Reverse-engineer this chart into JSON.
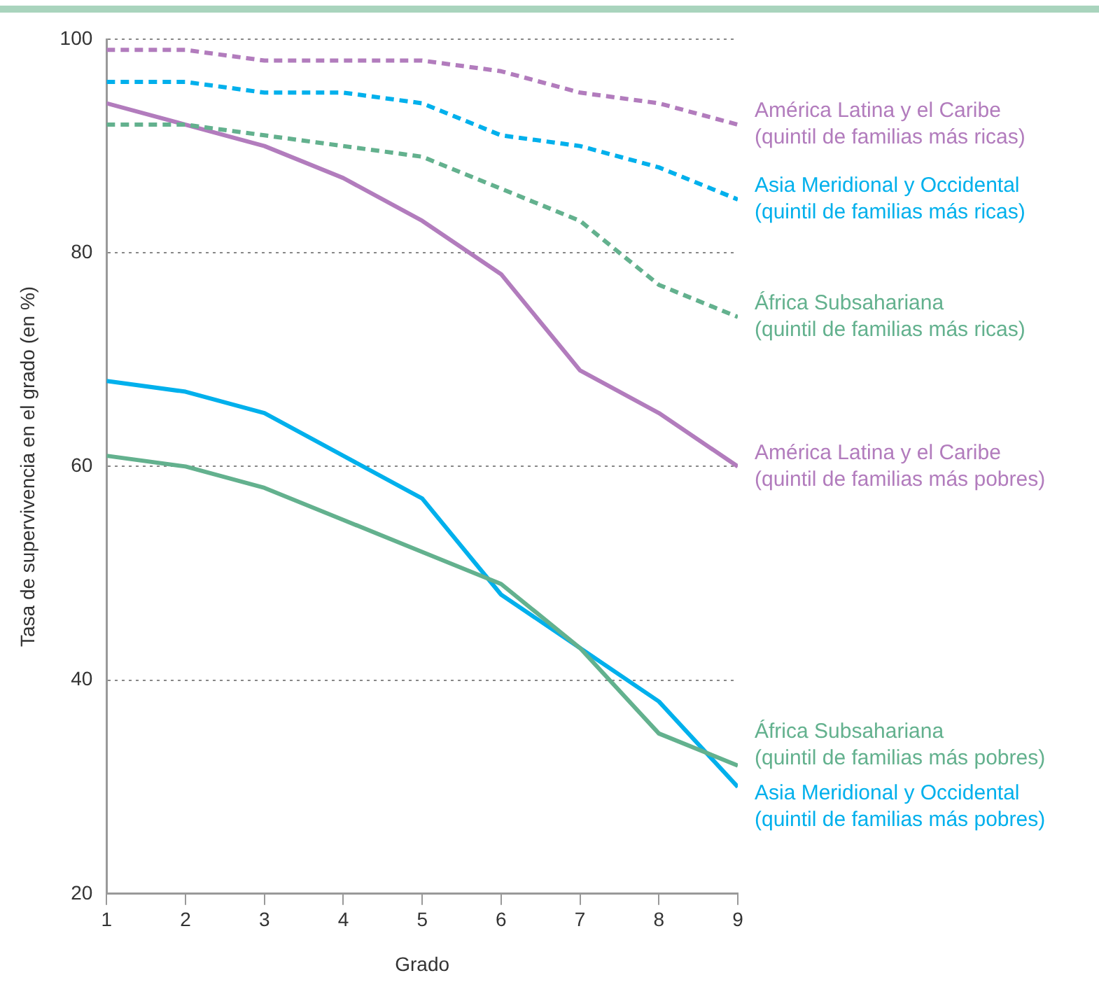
{
  "chart_data": {
    "type": "line",
    "xlabel": "Grado",
    "ylabel": "Tasa de supervivencia en el grado (en %)",
    "x": [
      1,
      2,
      3,
      4,
      5,
      6,
      7,
      8,
      9
    ],
    "xlim": [
      1,
      9
    ],
    "xticks": [
      1,
      2,
      3,
      4,
      5,
      6,
      7,
      8,
      9
    ],
    "ylim": [
      20,
      100
    ],
    "yticks": [
      20,
      40,
      60,
      80,
      100
    ],
    "grid": "y",
    "legend": false,
    "marker": "none",
    "series": [
      {
        "name": "América Latina y el Caribe\n(quintil de familias más ricas)",
        "color": "#b27cbd",
        "line_style": "dashed",
        "values": [
          99,
          99,
          98,
          98,
          98,
          97,
          95,
          94,
          92
        ]
      },
      {
        "name": "Asia Meridional y Occidental\n(quintil de familias más ricas)",
        "color": "#00b0ec",
        "line_style": "dashed",
        "values": [
          96,
          96,
          95,
          95,
          94,
          91,
          90,
          88,
          85
        ]
      },
      {
        "name": "África Subsahariana\n(quintil de familias más ricas)",
        "color": "#63b18e",
        "line_style": "dashed",
        "values": [
          92,
          92,
          91,
          90,
          89,
          86,
          83,
          77,
          74
        ]
      },
      {
        "name": "América Latina y el Caribe\n(quintil de familias más pobres)",
        "color": "#b27cbd",
        "line_style": "solid",
        "values": [
          94,
          92,
          90,
          87,
          83,
          78,
          69,
          65,
          60
        ]
      },
      {
        "name": "África Subsahariana\n(quintil de familias más pobres)",
        "color": "#63b18e",
        "line_style": "solid",
        "values": [
          61,
          60,
          58,
          55,
          52,
          49,
          43,
          35,
          32
        ]
      },
      {
        "name": "Asia Meridional y Occidental\n(quintil de familias más pobres)",
        "color": "#00b0ec",
        "line_style": "solid",
        "values": [
          68,
          67,
          65,
          61,
          57,
          48,
          43,
          38,
          30
        ]
      }
    ]
  }
}
